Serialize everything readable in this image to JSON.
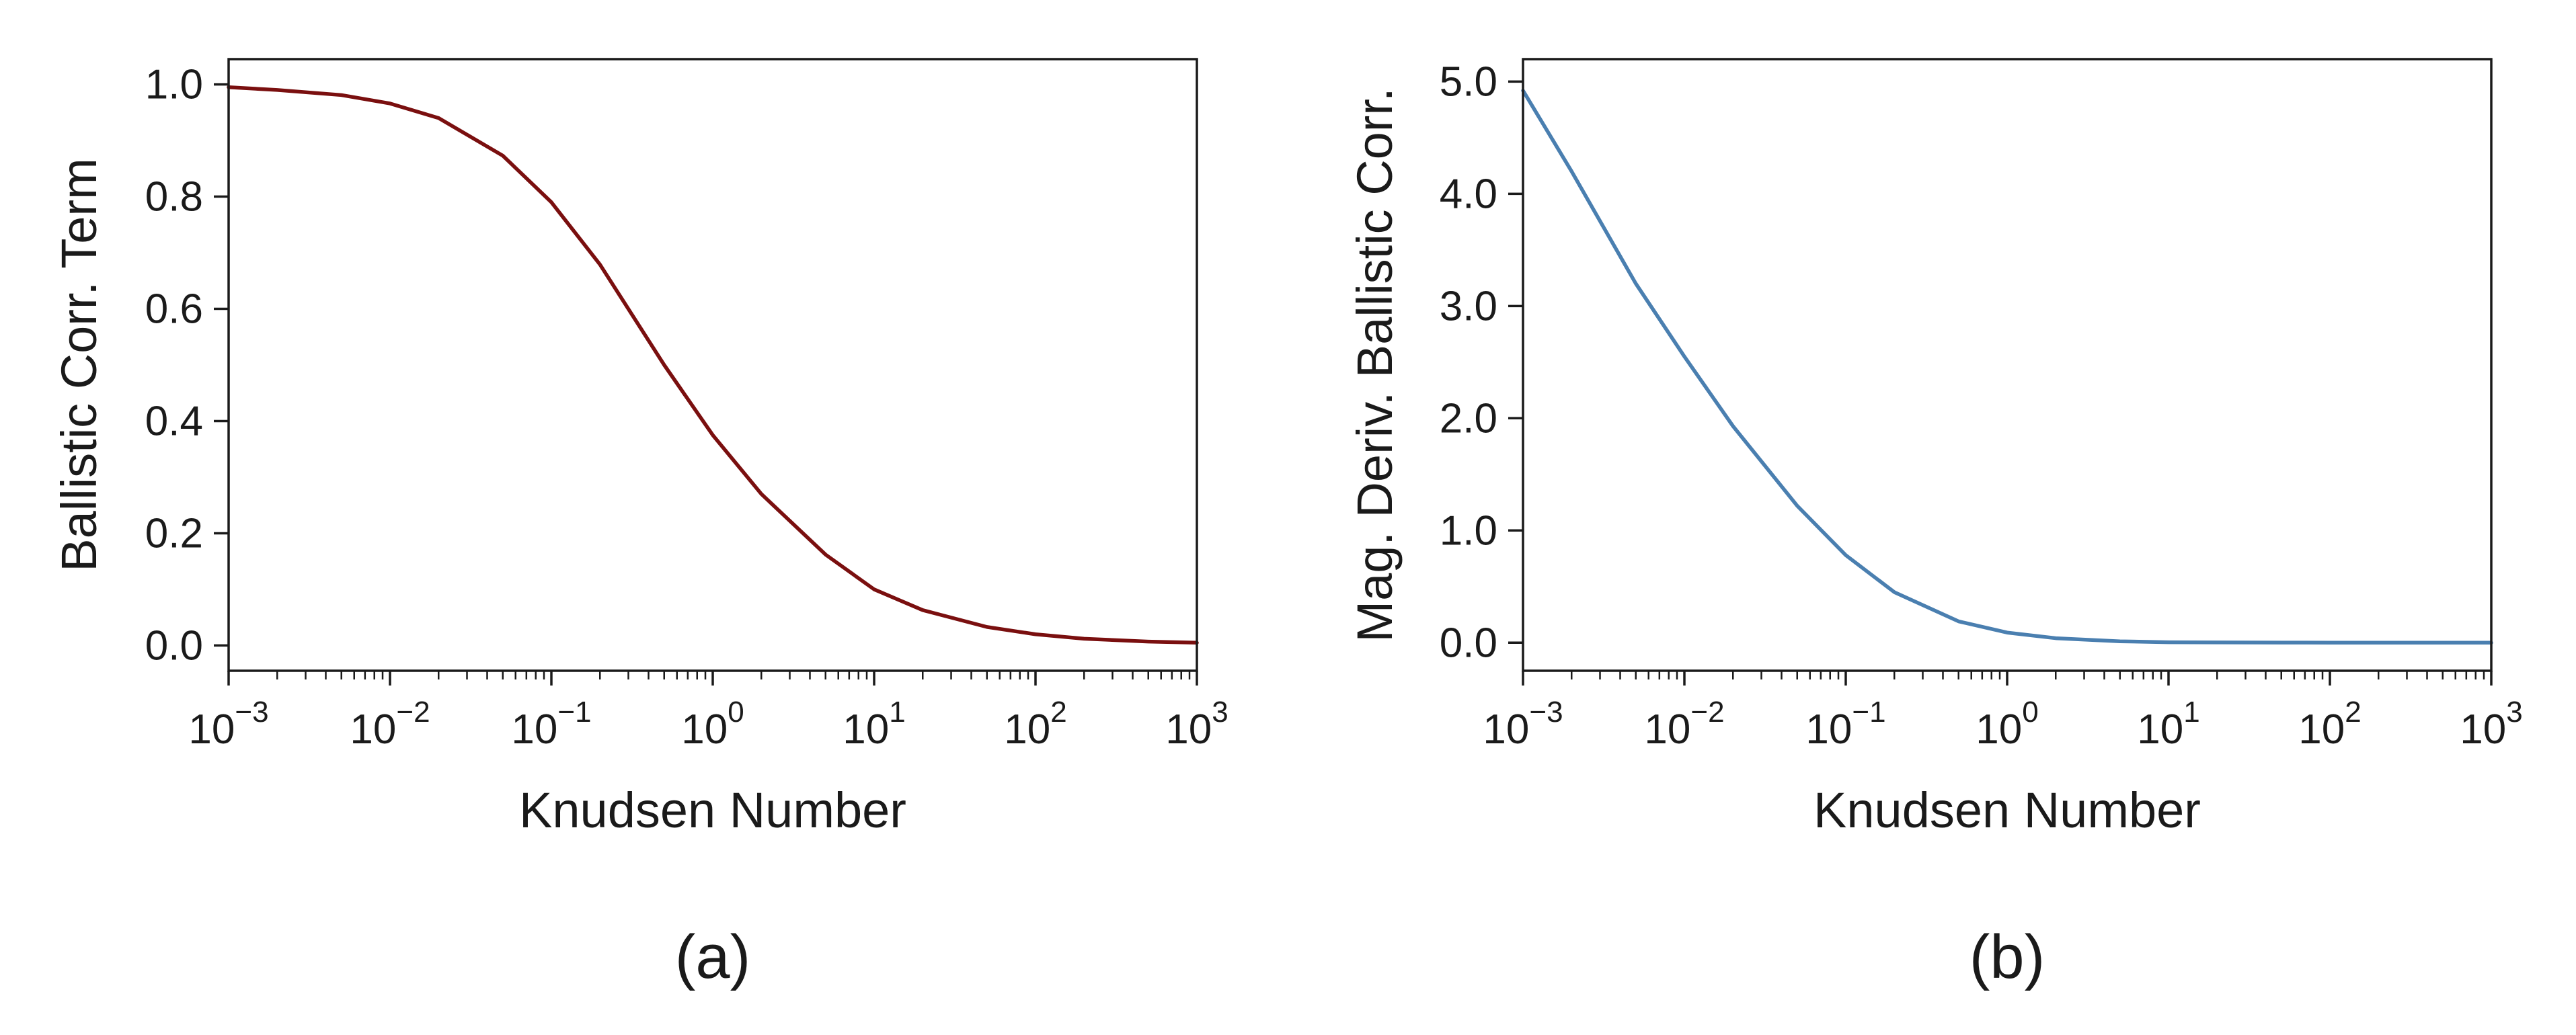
{
  "chart_data": [
    {
      "type": "line",
      "caption": "(a)",
      "xlabel": "Knudsen Number",
      "ylabel": "Ballistic Corr. Term",
      "x_scale": "log",
      "xlim": [
        0.001,
        1000
      ],
      "ylim": [
        -0.045,
        1.045
      ],
      "x_ticks": [
        0.001,
        0.01,
        0.1,
        1,
        10,
        100,
        1000
      ],
      "x_tick_labels": [
        {
          "base": "10",
          "exp": "−3"
        },
        {
          "base": "10",
          "exp": "−2"
        },
        {
          "base": "10",
          "exp": "−1"
        },
        {
          "base": "10",
          "exp": "0"
        },
        {
          "base": "10",
          "exp": "1"
        },
        {
          "base": "10",
          "exp": "2"
        },
        {
          "base": "10",
          "exp": "3"
        }
      ],
      "y_ticks": [
        0.0,
        0.2,
        0.4,
        0.6,
        0.8,
        1.0
      ],
      "y_tick_labels": [
        "0.0",
        "0.2",
        "0.4",
        "0.6",
        "0.8",
        "1.0"
      ],
      "grid": false,
      "series": [
        {
          "color": "#7a0f0f",
          "x": [
            0.001,
            0.002,
            0.005,
            0.01,
            0.02,
            0.05,
            0.1,
            0.2,
            0.5,
            1,
            2,
            5,
            10,
            20,
            50,
            100,
            200,
            500,
            1000
          ],
          "y": [
            0.995,
            0.99,
            0.981,
            0.966,
            0.94,
            0.873,
            0.79,
            0.679,
            0.5,
            0.375,
            0.27,
            0.162,
            0.1,
            0.063,
            0.033,
            0.02,
            0.012,
            0.007,
            0.005
          ]
        }
      ]
    },
    {
      "type": "line",
      "caption": "(b)",
      "xlabel": "Knudsen Number",
      "ylabel": "Mag. Deriv. Ballistic Corr.",
      "x_scale": "log",
      "xlim": [
        0.001,
        1000
      ],
      "ylim": [
        -0.25,
        5.2
      ],
      "x_ticks": [
        0.001,
        0.01,
        0.1,
        1,
        10,
        100,
        1000
      ],
      "x_tick_labels": [
        {
          "base": "10",
          "exp": "−3"
        },
        {
          "base": "10",
          "exp": "−2"
        },
        {
          "base": "10",
          "exp": "−1"
        },
        {
          "base": "10",
          "exp": "0"
        },
        {
          "base": "10",
          "exp": "1"
        },
        {
          "base": "10",
          "exp": "2"
        },
        {
          "base": "10",
          "exp": "3"
        }
      ],
      "y_ticks": [
        0.0,
        1.0,
        2.0,
        3.0,
        4.0,
        5.0
      ],
      "y_tick_labels": [
        "0.0",
        "1.0",
        "2.0",
        "3.0",
        "4.0",
        "5.0"
      ],
      "grid": false,
      "series": [
        {
          "color": "#4a7fb0",
          "x": [
            0.001,
            0.002,
            0.005,
            0.01,
            0.02,
            0.05,
            0.1,
            0.2,
            0.5,
            1,
            2,
            5,
            10,
            20,
            50,
            100,
            200,
            500,
            1000
          ],
          "y": [
            4.92,
            4.2,
            3.2,
            2.55,
            1.93,
            1.22,
            0.78,
            0.45,
            0.19,
            0.09,
            0.04,
            0.012,
            0.004,
            0.002,
            0.001,
            0.0,
            0.0,
            0.0,
            0.0
          ]
        }
      ]
    }
  ]
}
